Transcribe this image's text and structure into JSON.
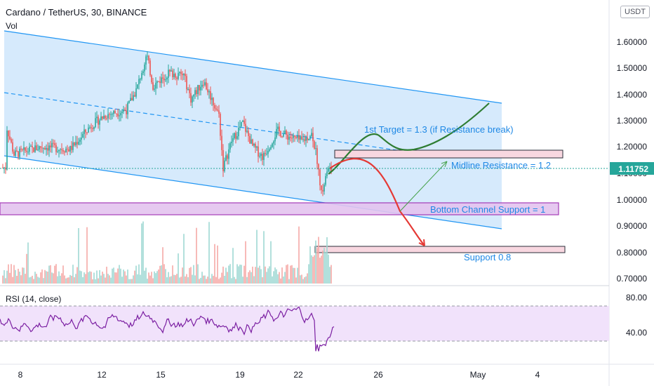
{
  "header": {
    "symbol_line": "Cardano / TetherUS, 30, BINANCE",
    "volume_label": "Vol",
    "currency_button": "USDT"
  },
  "rsi_panel": {
    "title": "RSI (14, close)",
    "levels": [
      "80.00",
      "40.00"
    ]
  },
  "colors": {
    "channel_fill": "#cfe6fb",
    "channel_line": "#2196f3",
    "candle_up": "#26a69a",
    "candle_down": "#ef5350",
    "annotation_text": "#1e88e5",
    "bullish_path": "#2e7d32",
    "bearish_path": "#e53935",
    "rsi_fill": "#f1e2fb",
    "rsi_line": "#7b1fa2",
    "band_purple": "#9c27b0"
  },
  "annotations": {
    "target": "1st Target = 1.3 (if Resistance break)",
    "midline": "Midline Resistance = 1.2",
    "bottom_support": "Bottom Channel Support = 1",
    "support": "Support 0.8"
  },
  "chart_data": {
    "type": "candlestick",
    "title": "Cardano / TetherUS, 30, BINANCE",
    "x_ticks": [
      "8",
      "12",
      "15",
      "19",
      "22",
      "26",
      "May",
      "4"
    ],
    "y_ticks": [
      "1.60000",
      "1.50000",
      "1.40000",
      "1.30000",
      "1.20000",
      "1.10000",
      "1.00000",
      "0.90000",
      "0.80000",
      "0.70000"
    ],
    "ylim": [
      0.68,
      1.7
    ],
    "last_price": "1.11752",
    "price_path": [
      {
        "t": "8",
        "price": 1.28
      },
      {
        "t": "12",
        "price": 1.28
      },
      {
        "t": "15",
        "price": 1.52
      },
      {
        "t": "19",
        "price": 1.27
      },
      {
        "t": "22",
        "price": 1.22
      },
      {
        "t": "23",
        "price": 0.92
      },
      {
        "t": "23",
        "price": 1.11752
      }
    ],
    "levels": [
      {
        "label": "1st Target = 1.3 (if Resistance break)",
        "value": 1.3
      },
      {
        "label": "Midline Resistance = 1.2",
        "value": 1.2
      },
      {
        "label": "Bottom Channel Support = 1",
        "value": 1.0
      },
      {
        "label": "Support 0.8",
        "value": 0.8
      }
    ],
    "rsi": {
      "name": "RSI (14, close)",
      "upper_band": 70,
      "lower_band": 30,
      "ticks": [
        "80.00",
        "40.00"
      ]
    },
    "grid": false
  }
}
